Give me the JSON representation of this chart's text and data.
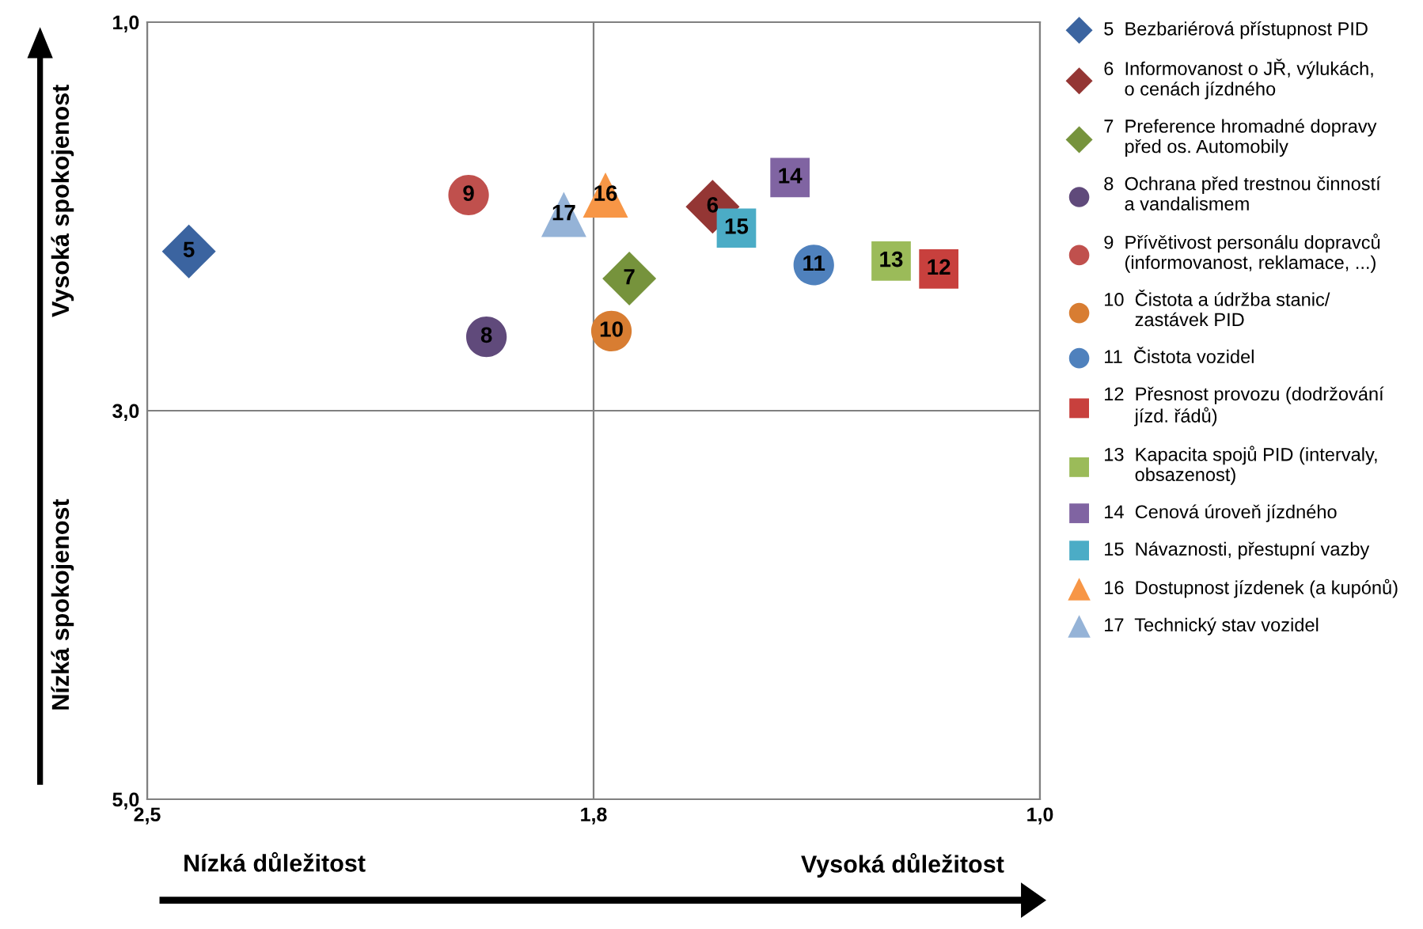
{
  "chart_data": {
    "type": "scatter",
    "xlim": [
      2.5,
      1.0
    ],
    "ylim": [
      5.0,
      1.0
    ],
    "xticks": [
      {
        "value": 2.5,
        "label": "2,5"
      },
      {
        "value": 1.75,
        "label": "1,8"
      },
      {
        "value": 1.0,
        "label": "1,0"
      }
    ],
    "yticks": [
      {
        "value": 1.0,
        "label": "1,0"
      },
      {
        "value": 3.0,
        "label": "3,0"
      },
      {
        "value": 5.0,
        "label": "5,0"
      }
    ],
    "grid": true,
    "legend": "right",
    "series": [
      {
        "name": "5  Bezbariérová přístupnost PID",
        "color": "#3b64a0",
        "marker": "diamond",
        "x": [
          2.43
        ],
        "values": [
          2.18
        ]
      },
      {
        "name": "6  Informovanost o JŘ, výlukách,\n    o cenách jízdného",
        "color": "#943634",
        "marker": "diamond",
        "x": [
          1.55
        ],
        "values": [
          1.95
        ]
      },
      {
        "name": "7  Preference hromadné dopravy\n    před os. Automobily",
        "color": "#76933c",
        "marker": "diamond",
        "x": [
          1.69
        ],
        "values": [
          2.32
        ]
      },
      {
        "name": "8  Ochrana před trestnou činností\n    a vandalismem",
        "color": "#604a7b",
        "marker": "circle",
        "x": [
          1.93
        ],
        "values": [
          2.62
        ]
      },
      {
        "name": "9  Přívětivost personálu dopravců\n    (informovanost, reklamace, ...)",
        "color": "#c0504d",
        "marker": "circle",
        "x": [
          1.96
        ],
        "values": [
          1.89
        ]
      },
      {
        "name": "10  Čistota a údržba stanic/\n      zastávek PID",
        "color": "#d87d32",
        "marker": "circle",
        "x": [
          1.72
        ],
        "values": [
          2.59
        ]
      },
      {
        "name": "11  Čistota vozidel",
        "color": "#4f81bd",
        "marker": "circle",
        "x": [
          1.38
        ],
        "values": [
          2.25
        ]
      },
      {
        "name": "12  Přesnost provozu (dodržování\n      jízd. řádů)",
        "color": "#c8403d",
        "marker": "square",
        "x": [
          1.17
        ],
        "values": [
          2.27
        ]
      },
      {
        "name": "13  Kapacita spojů PID (intervaly,\n      obsazenost)",
        "color": "#9bbb59",
        "marker": "square",
        "x": [
          1.25
        ],
        "values": [
          2.23
        ]
      },
      {
        "name": "14  Cenová úroveň jízdného",
        "color": "#8064a2",
        "marker": "square",
        "x": [
          1.42
        ],
        "values": [
          1.8
        ]
      },
      {
        "name": "15  Návaznosti, přestupní vazby",
        "color": "#4bacc6",
        "marker": "square",
        "x": [
          1.51
        ],
        "values": [
          2.06
        ]
      },
      {
        "name": "16  Dostupnost jízdenek (a kupónů)",
        "color": "#f79646",
        "marker": "triangle",
        "x": [
          1.73
        ],
        "values": [
          1.89
        ]
      },
      {
        "name": "17  Technický stav vozidel",
        "color": "#95b3d7",
        "marker": "triangle",
        "x": [
          1.8
        ],
        "values": [
          1.99
        ]
      }
    ],
    "annotations": [
      {
        "text": "5",
        "x": 2.43,
        "y": 2.18
      },
      {
        "text": "6",
        "x": 1.55,
        "y": 1.95
      },
      {
        "text": "7",
        "x": 1.69,
        "y": 2.32
      },
      {
        "text": "8",
        "x": 1.93,
        "y": 2.62
      },
      {
        "text": "9",
        "x": 1.96,
        "y": 1.89
      },
      {
        "text": "10",
        "x": 1.72,
        "y": 2.59
      },
      {
        "text": "11",
        "x": 1.38,
        "y": 2.25
      },
      {
        "text": "12",
        "x": 1.17,
        "y": 2.27
      },
      {
        "text": "13",
        "x": 1.25,
        "y": 2.23
      },
      {
        "text": "14",
        "x": 1.42,
        "y": 1.8
      },
      {
        "text": "15",
        "x": 1.51,
        "y": 2.06
      },
      {
        "text": "16",
        "x": 1.73,
        "y": 1.89
      },
      {
        "text": "17",
        "x": 1.8,
        "y": 1.99
      },
      "Nízká důležitost",
      "Vysoká důležitost",
      "Vysoká spokojenost",
      "Nízká spokojenost"
    ]
  }
}
